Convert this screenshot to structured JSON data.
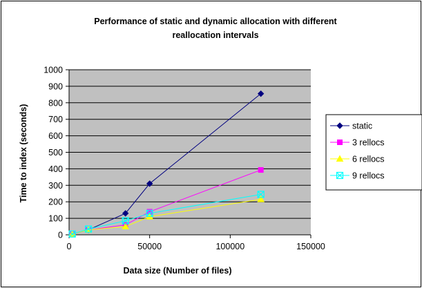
{
  "chart_data": {
    "type": "line",
    "title_lines": [
      "Performance of static and dynamic allocation with different",
      "reallocation intervals"
    ],
    "xlabel": "Data size (Number of files)",
    "ylabel": "Time to index (seconds)",
    "xlim": [
      0,
      150000
    ],
    "ylim": [
      0,
      1000
    ],
    "xticks": [
      0,
      50000,
      100000,
      150000
    ],
    "yticks": [
      0,
      100,
      200,
      300,
      400,
      500,
      600,
      700,
      800,
      900,
      1000
    ],
    "grid": true,
    "legend_position": "right",
    "series": [
      {
        "name": "static",
        "color": "#000080",
        "marker": "diamond",
        "x": [
          2000,
          12000,
          35000,
          50000,
          119000
        ],
        "y": [
          5,
          30,
          130,
          310,
          855
        ]
      },
      {
        "name": "3 rellocs",
        "color": "#ff00ff",
        "marker": "square",
        "x": [
          2000,
          12000,
          35000,
          50000,
          119000
        ],
        "y": [
          5,
          30,
          60,
          140,
          393
        ]
      },
      {
        "name": "6 rellocs",
        "color": "#ffff00",
        "marker": "triangle",
        "x": [
          2000,
          12000,
          35000,
          50000,
          119000
        ],
        "y": [
          5,
          30,
          50,
          110,
          215
        ]
      },
      {
        "name": "9 rellocs",
        "color": "#00ffff",
        "marker": "x-square",
        "x": [
          2000,
          12000,
          35000,
          50000,
          119000
        ],
        "y": [
          5,
          35,
          85,
          130,
          245
        ]
      }
    ]
  }
}
